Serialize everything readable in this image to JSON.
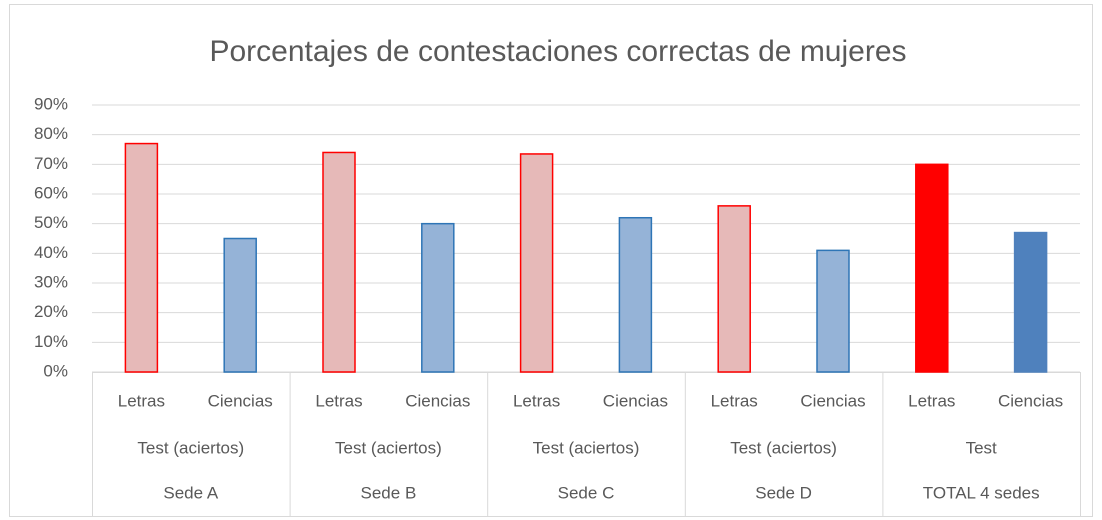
{
  "chart_data": {
    "type": "bar",
    "title": "Porcentajes de contestaciones correctas de mujeres",
    "categories": [
      "Letras",
      "Ciencias",
      "Letras",
      "Ciencias",
      "Letras",
      "Ciencias",
      "Letras",
      "Ciencias",
      "Letras",
      "Ciencias"
    ],
    "category_levels": [
      [
        "Test (aciertos)",
        "Test (aciertos)",
        "Test (aciertos)",
        "Test (aciertos)",
        "Test"
      ],
      [
        "Sede A",
        "Sede B",
        "Sede C",
        "Sede D",
        "TOTAL 4 sedes"
      ]
    ],
    "values": [
      77,
      45,
      74,
      50,
      73.5,
      52,
      56,
      41,
      70,
      47
    ],
    "colors": [
      "#e6b9b8",
      "#95b3d7",
      "#e6b9b8",
      "#95b3d7",
      "#e6b9b8",
      "#95b3d7",
      "#e6b9b8",
      "#95b3d7",
      "#ff0000",
      "#4f81bd"
    ],
    "edge_colors": [
      "#ff0000",
      "#2e75b6",
      "#ff0000",
      "#2e75b6",
      "#ff0000",
      "#2e75b6",
      "#ff0000",
      "#2e75b6",
      "#ff0000",
      "#4f81bd"
    ],
    "ylim": [
      0,
      90
    ],
    "yticks": [
      {
        "value": 0,
        "label": "0%"
      },
      {
        "value": 10,
        "label": "10%"
      },
      {
        "value": 20,
        "label": "20%"
      },
      {
        "value": 30,
        "label": "30%"
      },
      {
        "value": 40,
        "label": "40%"
      },
      {
        "value": 50,
        "label": "50%"
      },
      {
        "value": 60,
        "label": "60%"
      },
      {
        "value": 70,
        "label": "70%"
      },
      {
        "value": 80,
        "label": "80%"
      },
      {
        "value": 90,
        "label": "90%"
      }
    ],
    "grid": true
  }
}
